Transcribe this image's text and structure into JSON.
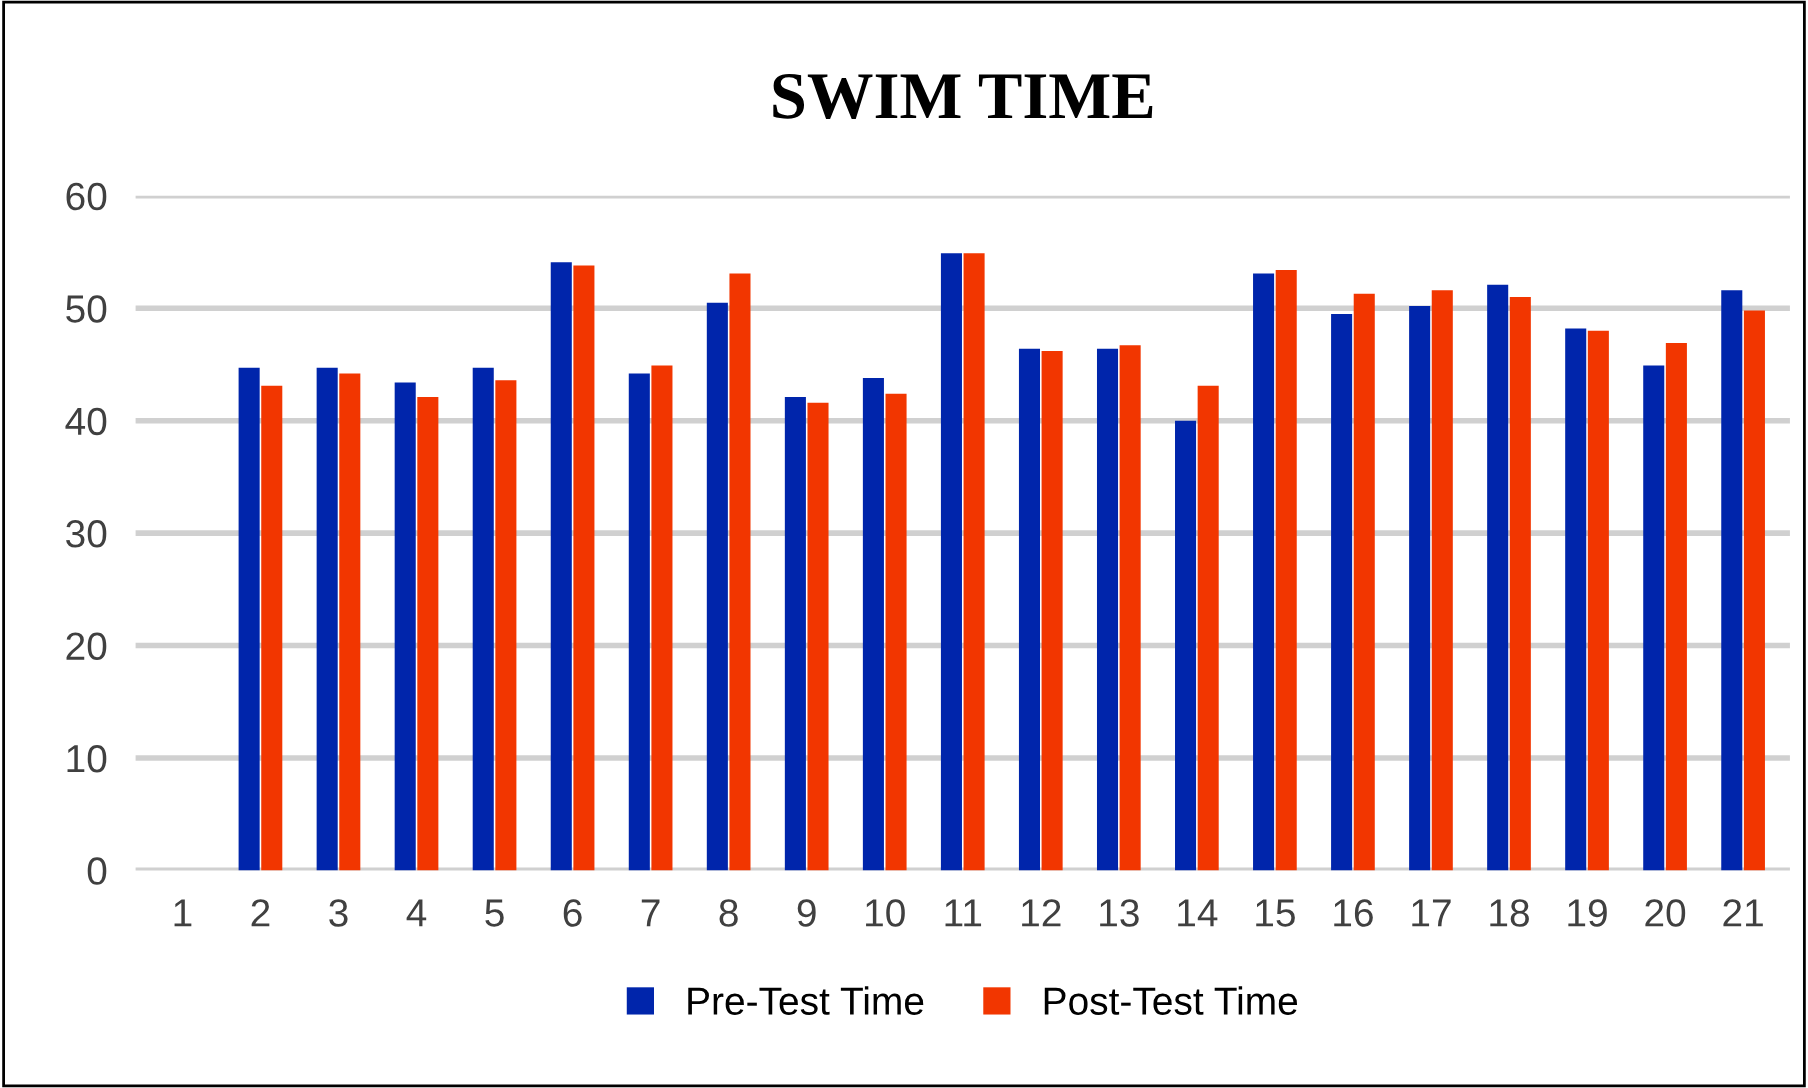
{
  "chart_data": {
    "type": "bar",
    "title": "SWIM TIME",
    "categories": [
      "1",
      "2",
      "3",
      "4",
      "5",
      "6",
      "7",
      "8",
      "9",
      "10",
      "11",
      "12",
      "13",
      "14",
      "15",
      "16",
      "17",
      "18",
      "19",
      "20",
      "21"
    ],
    "series": [
      {
        "name": "Pre-Test Time",
        "color": "#0025ab",
        "values": [
          null,
          44.7,
          44.7,
          43.4,
          44.7,
          54.1,
          44.2,
          50.5,
          42.1,
          43.8,
          54.9,
          46.4,
          46.4,
          40.0,
          53.1,
          49.5,
          50.2,
          52.1,
          48.2,
          44.9,
          51.6
        ]
      },
      {
        "name": "Post-Test Time",
        "color": "#f23600",
        "values": [
          null,
          43.1,
          44.2,
          42.1,
          43.6,
          53.8,
          44.9,
          53.1,
          41.6,
          42.4,
          54.9,
          46.2,
          46.7,
          43.1,
          53.4,
          51.3,
          51.6,
          51.0,
          48.0,
          46.9,
          49.8
        ]
      }
    ],
    "ylim": [
      0,
      60
    ],
    "yticks": [
      0,
      10,
      20,
      30,
      40,
      50,
      60
    ],
    "grid": "y",
    "legend": "bottom"
  }
}
